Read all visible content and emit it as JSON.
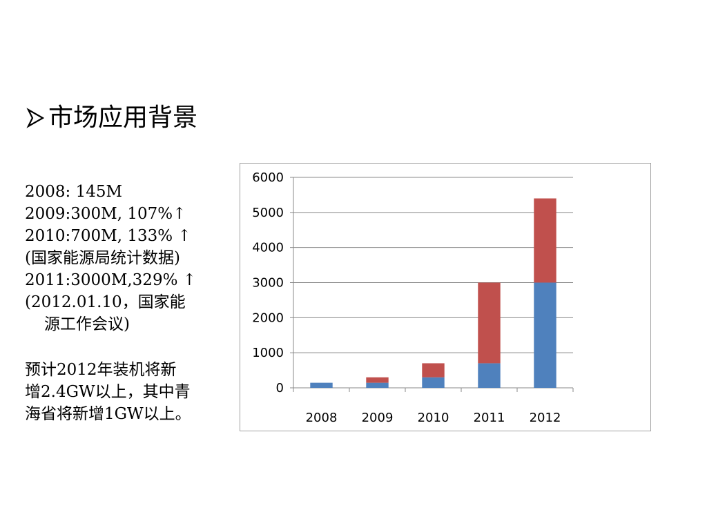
{
  "slide": {
    "title": "市场应用背景",
    "bullet_icon": "arrow-bullet-icon"
  },
  "notes": {
    "lines": [
      "2008: 145M",
      "2009:300M, 107%↑",
      "2010:700M, 133% ↑",
      "(国家能源局统计数据)",
      "2011:3000M,329% ↑",
      "(2012.01.10，国家能",
      "源工作会议)"
    ],
    "forecast_lines": [
      "预计2012年装机将新",
      "增2.4GW以上，其中青",
      "海省将新增1GW以上。"
    ]
  },
  "chart_data": {
    "type": "bar",
    "stacked": true,
    "title": "",
    "xlabel": "",
    "ylabel": "",
    "categories": [
      "2008",
      "2009",
      "2010",
      "2011",
      "2012"
    ],
    "ylim": [
      0,
      6000
    ],
    "yticks": [
      0,
      1000,
      2000,
      3000,
      4000,
      5000,
      6000
    ],
    "grid": true,
    "legend": "none",
    "series": [
      {
        "values": [
          145,
          145,
          300,
          700,
          3000
        ],
        "color": "#4f81bd"
      },
      {
        "values": [
          0,
          155,
          400,
          2300,
          2400
        ],
        "color": "#c0504d"
      }
    ]
  }
}
